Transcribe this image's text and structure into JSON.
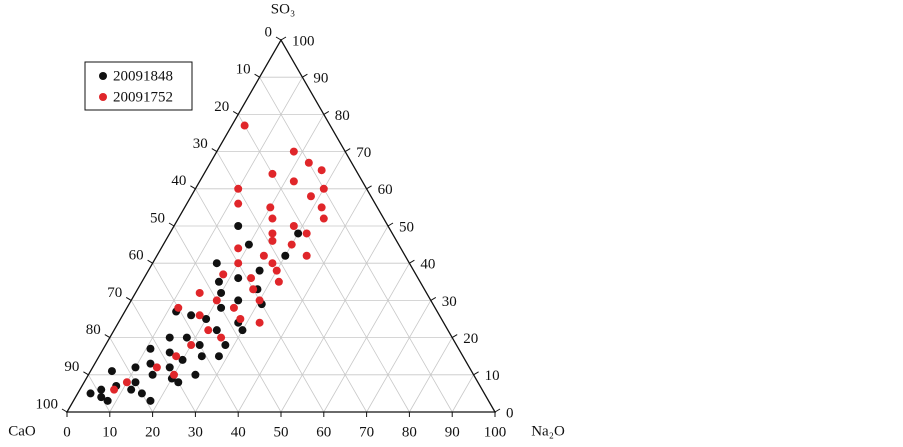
{
  "chart_data": {
    "type": "ternary",
    "apex_labels": {
      "top": "SO₃",
      "left": "CaO",
      "right": "Na₂O"
    },
    "ticks": [
      0,
      10,
      20,
      30,
      40,
      50,
      60,
      70,
      80,
      90,
      100
    ],
    "grid": true,
    "legend": "upper left",
    "series": [
      {
        "name": "20091848",
        "color": "#111111",
        "values": [
          [
            92,
            5,
            3
          ],
          [
            90,
            4,
            6
          ],
          [
            89,
            6,
            5
          ],
          [
            89,
            3,
            8
          ],
          [
            85,
            7,
            8
          ],
          [
            80,
            8,
            12
          ],
          [
            80,
            5,
            15
          ],
          [
            75,
            10,
            15
          ],
          [
            70,
            12,
            18
          ],
          [
            71,
            9,
            20
          ],
          [
            66,
            14,
            20
          ],
          [
            61,
            15,
            24
          ],
          [
            60,
            18,
            22
          ],
          [
            68,
            16,
            16
          ],
          [
            62,
            20,
            18
          ],
          [
            54,
            22,
            24
          ],
          [
            55,
            25,
            20
          ],
          [
            48,
            24,
            28
          ],
          [
            50,
            28,
            22
          ],
          [
            45,
            30,
            25
          ],
          [
            78,
            12,
            10
          ],
          [
            82,
            6,
            12
          ],
          [
            79,
            3,
            18
          ],
          [
            65,
            10,
            25
          ],
          [
            54,
            18,
            28
          ],
          [
            66,
            20,
            14
          ],
          [
            58,
            26,
            16
          ],
          [
            48,
            32,
            20
          ],
          [
            47,
            35,
            18
          ],
          [
            45,
            40,
            15
          ],
          [
            35,
            45,
            20
          ],
          [
            36,
            38,
            26
          ],
          [
            35,
            50,
            15
          ],
          [
            22,
            48,
            30
          ],
          [
            28,
            42,
            30
          ],
          [
            48,
            22,
            30
          ],
          [
            57,
            15,
            28
          ],
          [
            70,
            8,
            22
          ],
          [
            74,
            13,
            13
          ],
          [
            61,
            27,
            12
          ],
          [
            84,
            11,
            5
          ],
          [
            72,
            17,
            11
          ],
          [
            39,
            33,
            28
          ],
          [
            42,
            36,
            22
          ],
          [
            40,
            29,
            31
          ]
        ]
      },
      {
        "name": "20091752",
        "color": "#e0262a",
        "values": [
          [
            20,
            77,
            3
          ],
          [
            10,
            67,
            23
          ],
          [
            8,
            65,
            27
          ],
          [
            10,
            60,
            30
          ],
          [
            16,
            62,
            22
          ],
          [
            14,
            58,
            28
          ],
          [
            13,
            55,
            32
          ],
          [
            14,
            52,
            34
          ],
          [
            22,
            50,
            28
          ],
          [
            20,
            48,
            32
          ],
          [
            25,
            45,
            30
          ],
          [
            23,
            42,
            35
          ],
          [
            29,
            46,
            25
          ],
          [
            32,
            40,
            28
          ],
          [
            32,
            38,
            30
          ],
          [
            33,
            35,
            32
          ],
          [
            39,
            36,
            25
          ],
          [
            40,
            33,
            27
          ],
          [
            40,
            30,
            30
          ],
          [
            47,
            28,
            25
          ],
          [
            47,
            25,
            28
          ],
          [
            50,
            30,
            20
          ],
          [
            56,
            26,
            18
          ],
          [
            56,
            22,
            22
          ],
          [
            54,
            20,
            26
          ],
          [
            62,
            18,
            20
          ],
          [
            67,
            15,
            18
          ],
          [
            73,
            12,
            15
          ],
          [
            70,
            10,
            20
          ],
          [
            82,
            8,
            10
          ],
          [
            86,
            6,
            8
          ],
          [
            25,
            55,
            20
          ],
          [
            26,
            52,
            22
          ],
          [
            28,
            48,
            24
          ],
          [
            38,
            44,
            18
          ],
          [
            40,
            40,
            20
          ],
          [
            20,
            64,
            16
          ],
          [
            12,
            70,
            18
          ],
          [
            30,
            60,
            10
          ],
          [
            32,
            56,
            12
          ],
          [
            53,
            32,
            15
          ],
          [
            60,
            28,
            12
          ],
          [
            43,
            24,
            33
          ],
          [
            33,
            42,
            25
          ],
          [
            45,
            37,
            18
          ]
        ]
      }
    ]
  }
}
